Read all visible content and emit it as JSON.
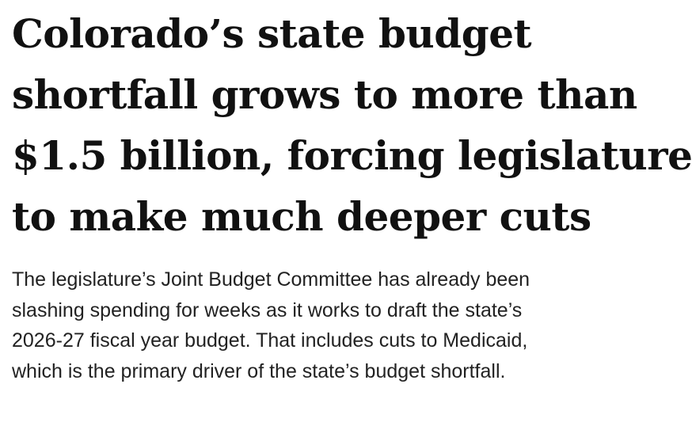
{
  "article": {
    "headline_lines": [
      "Colorado’s state budget",
      "shortfall grows to more than",
      "$1.5 billion, forcing legislature",
      "to make much deeper cuts"
    ],
    "dek_lines": [
      "The legislature’s Joint Budget Committee has already been",
      "slashing spending for weeks as it works to draft the state’s",
      "2026-27 fiscal year budget. That includes cuts to Medicaid,",
      "which is the primary driver of the state’s budget shortfall."
    ]
  }
}
